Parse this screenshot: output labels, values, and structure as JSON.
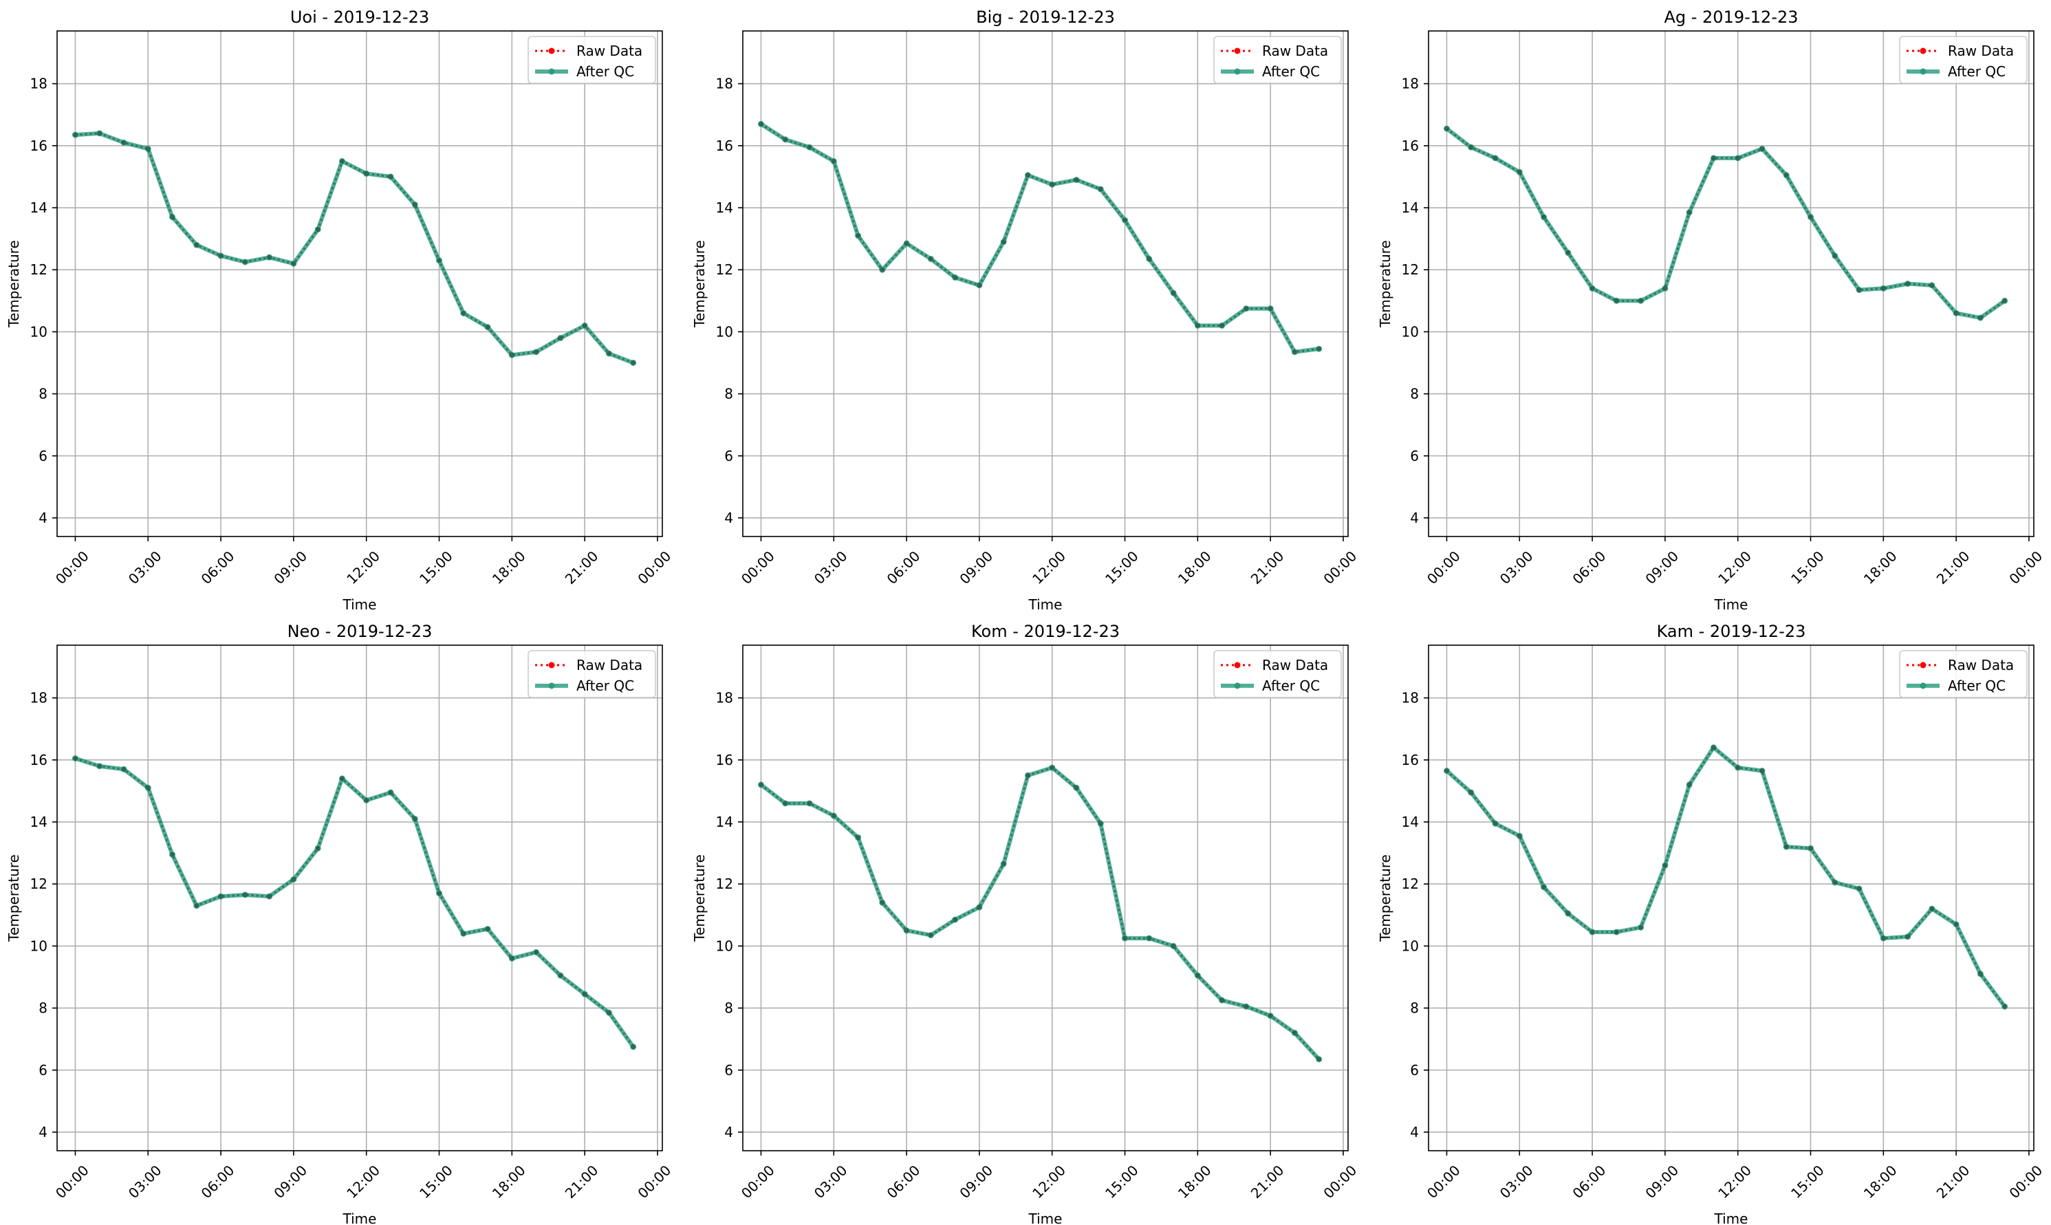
{
  "figure": {
    "background": "#ffffff"
  },
  "colors": {
    "raw": "#ff0000",
    "qc": "#2a9d7f",
    "grid": "#b0b0b0",
    "axis": "#000000"
  },
  "legend_labels": [
    "Raw Data",
    "After QC"
  ],
  "chart_data": [
    {
      "type": "line",
      "title": "Uoi - 2019-12-23",
      "xlabel": "Time",
      "ylabel": "Temperature",
      "ylim": [
        3.4,
        19.7
      ],
      "xlim": [
        -0.75,
        24.2
      ],
      "yticks": [
        4,
        6,
        8,
        10,
        12,
        14,
        16,
        18
      ],
      "xticks": [
        0,
        3,
        6,
        9,
        12,
        15,
        18,
        21,
        24
      ],
      "xtick_labels": [
        "00:00",
        "03:00",
        "06:00",
        "09:00",
        "12:00",
        "15:00",
        "18:00",
        "21:00",
        "00:00"
      ],
      "grid": true,
      "legend": "top-right",
      "x": [
        0,
        1,
        2,
        3,
        4,
        5,
        6,
        7,
        8,
        9,
        10,
        11,
        12,
        13,
        14,
        15,
        16,
        17,
        18,
        19,
        20,
        21,
        22,
        23
      ],
      "series": [
        {
          "name": "Raw Data",
          "style": "dotted",
          "values": [
            16.35,
            16.4,
            16.1,
            15.9,
            13.7,
            12.8,
            12.45,
            12.25,
            12.4,
            12.2,
            13.3,
            15.5,
            15.1,
            15.0,
            14.1,
            12.3,
            10.6,
            10.15,
            9.25,
            9.35,
            9.8,
            10.2,
            9.3,
            9.0
          ]
        },
        {
          "name": "After QC",
          "style": "solid",
          "values": [
            16.35,
            16.4,
            16.1,
            15.9,
            13.7,
            12.8,
            12.45,
            12.25,
            12.4,
            12.2,
            13.3,
            15.5,
            15.1,
            15.0,
            14.1,
            12.3,
            10.6,
            10.15,
            9.25,
            9.35,
            9.8,
            10.2,
            9.3,
            9.0
          ]
        }
      ]
    },
    {
      "type": "line",
      "title": "Big - 2019-12-23",
      "xlabel": "Time",
      "ylabel": "Temperature",
      "ylim": [
        3.4,
        19.7
      ],
      "xlim": [
        -0.75,
        24.2
      ],
      "yticks": [
        4,
        6,
        8,
        10,
        12,
        14,
        16,
        18
      ],
      "xticks": [
        0,
        3,
        6,
        9,
        12,
        15,
        18,
        21,
        24
      ],
      "xtick_labels": [
        "00:00",
        "03:00",
        "06:00",
        "09:00",
        "12:00",
        "15:00",
        "18:00",
        "21:00",
        "00:00"
      ],
      "grid": true,
      "legend": "top-right",
      "x": [
        0,
        1,
        2,
        3,
        4,
        5,
        6,
        7,
        8,
        9,
        10,
        11,
        12,
        13,
        14,
        15,
        16,
        17,
        18,
        19,
        20,
        21,
        22,
        23
      ],
      "series": [
        {
          "name": "Raw Data",
          "style": "dotted",
          "values": [
            16.7,
            16.2,
            15.95,
            15.5,
            13.1,
            12.0,
            12.85,
            12.35,
            11.75,
            11.5,
            12.9,
            15.05,
            14.75,
            14.9,
            14.6,
            13.6,
            12.35,
            11.25,
            10.2,
            10.2,
            10.75,
            10.75,
            9.35,
            9.45
          ]
        },
        {
          "name": "After QC",
          "style": "solid",
          "values": [
            16.7,
            16.2,
            15.95,
            15.5,
            13.1,
            12.0,
            12.85,
            12.35,
            11.75,
            11.5,
            12.9,
            15.05,
            14.75,
            14.9,
            14.6,
            13.6,
            12.35,
            11.25,
            10.2,
            10.2,
            10.75,
            10.75,
            9.35,
            9.45
          ]
        }
      ]
    },
    {
      "type": "line",
      "title": "Ag - 2019-12-23",
      "xlabel": "Time",
      "ylabel": "Temperature",
      "ylim": [
        3.4,
        19.7
      ],
      "xlim": [
        -0.75,
        24.2
      ],
      "yticks": [
        4,
        6,
        8,
        10,
        12,
        14,
        16,
        18
      ],
      "xticks": [
        0,
        3,
        6,
        9,
        12,
        15,
        18,
        21,
        24
      ],
      "xtick_labels": [
        "00:00",
        "03:00",
        "06:00",
        "09:00",
        "12:00",
        "15:00",
        "18:00",
        "21:00",
        "00:00"
      ],
      "grid": true,
      "legend": "top-right",
      "x": [
        0,
        1,
        2,
        3,
        4,
        5,
        6,
        7,
        8,
        9,
        10,
        11,
        12,
        13,
        14,
        15,
        16,
        17,
        18,
        19,
        20,
        21,
        22,
        23
      ],
      "series": [
        {
          "name": "Raw Data",
          "style": "dotted",
          "values": [
            16.55,
            15.95,
            15.6,
            15.15,
            13.7,
            12.55,
            11.4,
            11.0,
            11.0,
            11.4,
            13.85,
            15.6,
            15.6,
            15.9,
            15.05,
            13.7,
            12.45,
            11.35,
            11.4,
            11.55,
            11.5,
            10.6,
            10.45,
            11.0
          ]
        },
        {
          "name": "After QC",
          "style": "solid",
          "values": [
            16.55,
            15.95,
            15.6,
            15.15,
            13.7,
            12.55,
            11.4,
            11.0,
            11.0,
            11.4,
            13.85,
            15.6,
            15.6,
            15.9,
            15.05,
            13.7,
            12.45,
            11.35,
            11.4,
            11.55,
            11.5,
            10.6,
            10.45,
            11.0
          ]
        }
      ]
    },
    {
      "type": "line",
      "title": "Neo - 2019-12-23",
      "xlabel": "Time",
      "ylabel": "Temperature",
      "ylim": [
        3.4,
        19.7
      ],
      "xlim": [
        -0.75,
        24.2
      ],
      "yticks": [
        4,
        6,
        8,
        10,
        12,
        14,
        16,
        18
      ],
      "xticks": [
        0,
        3,
        6,
        9,
        12,
        15,
        18,
        21,
        24
      ],
      "xtick_labels": [
        "00:00",
        "03:00",
        "06:00",
        "09:00",
        "12:00",
        "15:00",
        "18:00",
        "21:00",
        "00:00"
      ],
      "grid": true,
      "legend": "top-right",
      "x": [
        0,
        1,
        2,
        3,
        4,
        5,
        6,
        7,
        8,
        9,
        10,
        11,
        12,
        13,
        14,
        15,
        16,
        17,
        18,
        19,
        20,
        21,
        22,
        23
      ],
      "series": [
        {
          "name": "Raw Data",
          "style": "dotted",
          "values": [
            16.05,
            15.8,
            15.7,
            15.1,
            12.95,
            11.3,
            11.6,
            11.65,
            11.6,
            12.15,
            13.15,
            15.4,
            14.7,
            14.95,
            14.1,
            11.7,
            10.4,
            10.55,
            9.6,
            9.8,
            9.05,
            8.45,
            7.85,
            6.75
          ]
        },
        {
          "name": "After QC",
          "style": "solid",
          "values": [
            16.05,
            15.8,
            15.7,
            15.1,
            12.95,
            11.3,
            11.6,
            11.65,
            11.6,
            12.15,
            13.15,
            15.4,
            14.7,
            14.95,
            14.1,
            11.7,
            10.4,
            10.55,
            9.6,
            9.8,
            9.05,
            8.45,
            7.85,
            6.75
          ]
        }
      ]
    },
    {
      "type": "line",
      "title": "Kom - 2019-12-23",
      "xlabel": "Time",
      "ylabel": "Temperature",
      "ylim": [
        3.4,
        19.7
      ],
      "xlim": [
        -0.75,
        24.2
      ],
      "yticks": [
        4,
        6,
        8,
        10,
        12,
        14,
        16,
        18
      ],
      "xticks": [
        0,
        3,
        6,
        9,
        12,
        15,
        18,
        21,
        24
      ],
      "xtick_labels": [
        "00:00",
        "03:00",
        "06:00",
        "09:00",
        "12:00",
        "15:00",
        "18:00",
        "21:00",
        "00:00"
      ],
      "grid": true,
      "legend": "top-right",
      "x": [
        0,
        1,
        2,
        3,
        4,
        5,
        6,
        7,
        8,
        9,
        10,
        11,
        12,
        13,
        14,
        15,
        16,
        17,
        18,
        19,
        20,
        21,
        22,
        23
      ],
      "series": [
        {
          "name": "Raw Data",
          "style": "dotted",
          "values": [
            15.2,
            14.6,
            14.6,
            14.2,
            13.5,
            11.4,
            10.5,
            10.35,
            10.85,
            11.25,
            12.65,
            15.5,
            15.75,
            15.1,
            13.95,
            10.25,
            10.25,
            10.0,
            9.05,
            8.25,
            8.05,
            7.75,
            7.2,
            6.35
          ]
        },
        {
          "name": "After QC",
          "style": "solid",
          "values": [
            15.2,
            14.6,
            14.6,
            14.2,
            13.5,
            11.4,
            10.5,
            10.35,
            10.85,
            11.25,
            12.65,
            15.5,
            15.75,
            15.1,
            13.95,
            10.25,
            10.25,
            10.0,
            9.05,
            8.25,
            8.05,
            7.75,
            7.2,
            6.35
          ]
        }
      ]
    },
    {
      "type": "line",
      "title": "Kam - 2019-12-23",
      "xlabel": "Time",
      "ylabel": "Temperature",
      "ylim": [
        3.4,
        19.7
      ],
      "xlim": [
        -0.75,
        24.2
      ],
      "yticks": [
        4,
        6,
        8,
        10,
        12,
        14,
        16,
        18
      ],
      "xticks": [
        0,
        3,
        6,
        9,
        12,
        15,
        18,
        21,
        24
      ],
      "xtick_labels": [
        "00:00",
        "03:00",
        "06:00",
        "09:00",
        "12:00",
        "15:00",
        "18:00",
        "21:00",
        "00:00"
      ],
      "grid": true,
      "legend": "top-right",
      "x": [
        0,
        1,
        2,
        3,
        4,
        5,
        6,
        7,
        8,
        9,
        10,
        11,
        12,
        13,
        14,
        15,
        16,
        17,
        18,
        19,
        20,
        21,
        22,
        23
      ],
      "series": [
        {
          "name": "Raw Data",
          "style": "dotted",
          "values": [
            15.65,
            14.95,
            13.95,
            13.55,
            11.9,
            11.05,
            10.45,
            10.45,
            10.6,
            12.6,
            15.2,
            16.4,
            15.75,
            15.65,
            13.2,
            13.15,
            12.05,
            11.85,
            10.25,
            10.3,
            11.2,
            10.7,
            9.1,
            8.05
          ]
        },
        {
          "name": "After QC",
          "style": "solid",
          "values": [
            15.65,
            14.95,
            13.95,
            13.55,
            11.9,
            11.05,
            10.45,
            10.45,
            10.6,
            12.6,
            15.2,
            16.4,
            15.75,
            15.65,
            13.2,
            13.15,
            12.05,
            11.85,
            10.25,
            10.3,
            11.2,
            10.7,
            9.1,
            8.05
          ]
        }
      ]
    }
  ]
}
